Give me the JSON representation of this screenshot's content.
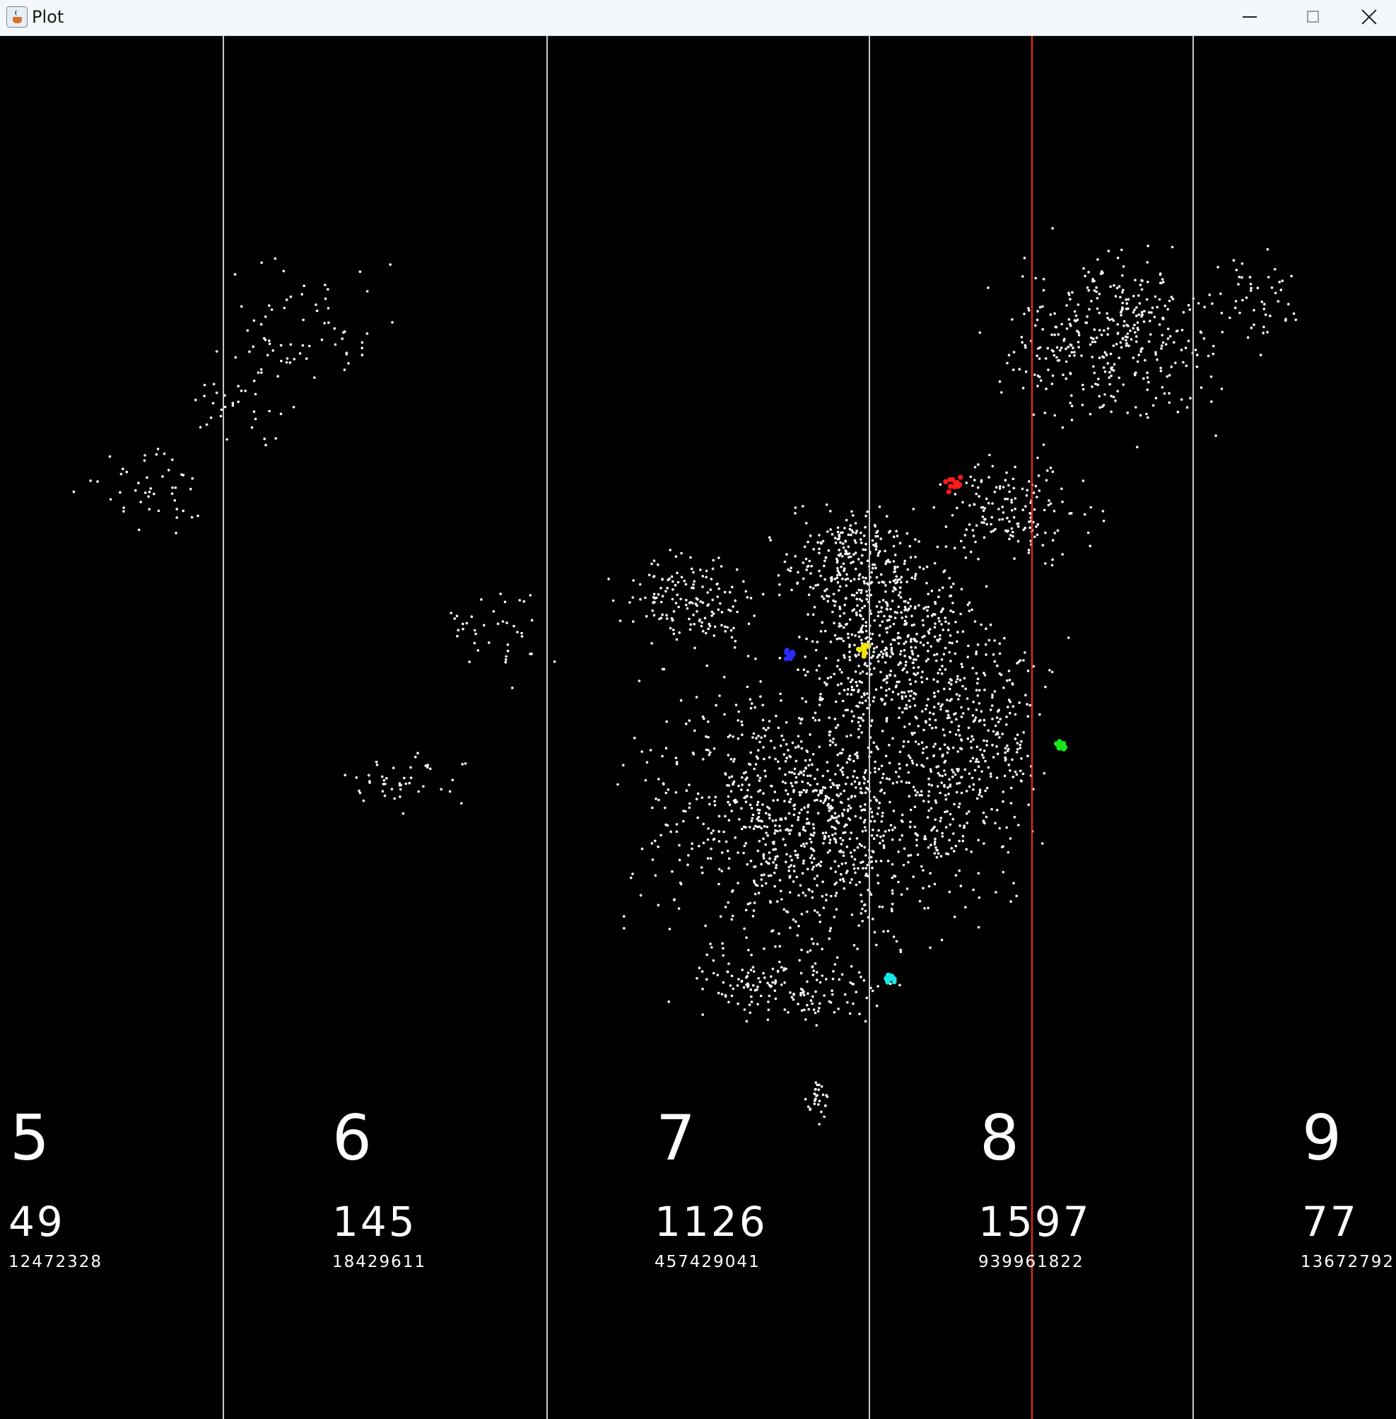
{
  "window": {
    "title": "Plot",
    "icon": "java-cup-icon",
    "controls": [
      "minimize-icon",
      "maximize-icon",
      "close-icon"
    ]
  },
  "plot": {
    "background": "#000000",
    "divider_color": "#c8c8c8",
    "marker_color": "#ff2a12",
    "point_color": "#ffffff",
    "columns": [
      {
        "digit": "5",
        "count": "49",
        "total": "12472328"
      },
      {
        "digit": "6",
        "count": "145",
        "total": "18429611"
      },
      {
        "digit": "7",
        "count": "1126",
        "total": "457429041"
      },
      {
        "digit": "8",
        "count": "1597",
        "total": "939961822"
      },
      {
        "digit": "9",
        "count": "77",
        "total": "13672792"
      }
    ],
    "clusters": [
      {
        "name": "red-cluster",
        "color": "#ff1a1a"
      },
      {
        "name": "blue-cluster",
        "color": "#2a2aff"
      },
      {
        "name": "yellow-cluster",
        "color": "#f5e600"
      },
      {
        "name": "green-cluster",
        "color": "#19e619"
      },
      {
        "name": "cyan-cluster",
        "color": "#19e6e6"
      }
    ]
  }
}
